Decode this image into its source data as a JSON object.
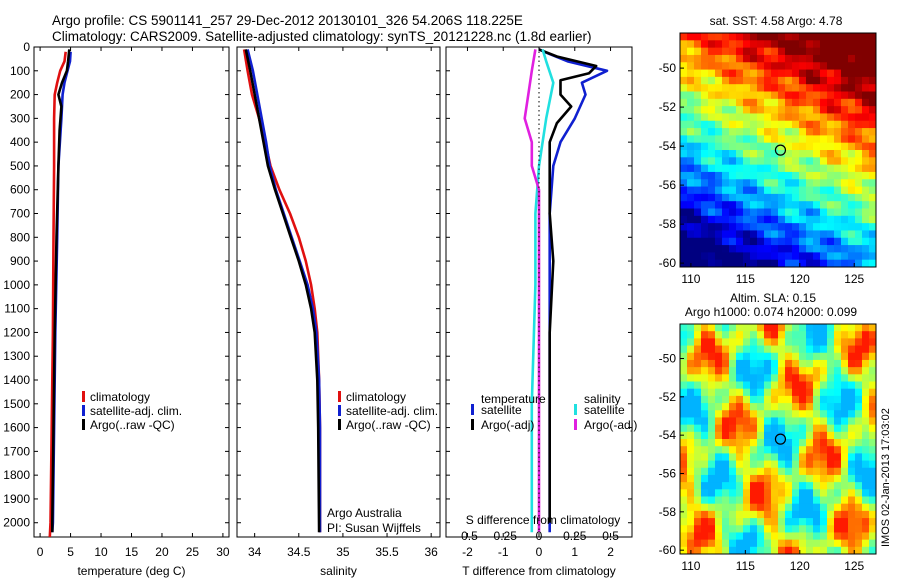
{
  "header": {
    "line1": "Argo profile: CS 5901141_257 29-Dec-2012 20130101_326 54.206S 118.225E",
    "line2": "Climatology: CARS2009. Satellite-adjusted climatology: synTS_20121228.nc (1.8d earlier)"
  },
  "colors": {
    "climatology": "#e01010",
    "satellite": "#1020d0",
    "argo": "#000000",
    "temp_sat": "#1020d0",
    "temp_argo": "#000000",
    "sal_sat": "#20e0e0",
    "sal_argo": "#e020e0"
  },
  "chart_data": [
    {
      "type": "line",
      "id": "temperature",
      "xlabel": "temperature (deg C)",
      "ylabel": "",
      "xlim": [
        -1,
        31
      ],
      "ylim": [
        2060,
        0
      ],
      "xticks": [
        0,
        5,
        10,
        15,
        20,
        25,
        30
      ],
      "yticks": [
        0,
        100,
        200,
        300,
        400,
        500,
        600,
        700,
        800,
        900,
        1000,
        1100,
        1200,
        1300,
        1400,
        1500,
        1600,
        1700,
        1800,
        1900,
        2000
      ],
      "legend": [
        "climatology",
        "satellite-adj. clim.",
        "Argo(..raw -QC)"
      ],
      "series": [
        {
          "name": "climatology",
          "color": "#e01010",
          "points": [
            [
              4.2,
              20
            ],
            [
              4.0,
              60
            ],
            [
              3.3,
              100
            ],
            [
              2.8,
              150
            ],
            [
              2.4,
              200
            ],
            [
              2.3,
              300
            ],
            [
              2.3,
              500
            ],
            [
              2.2,
              800
            ],
            [
              2.1,
              1200
            ],
            [
              1.9,
              1600
            ],
            [
              1.7,
              2000
            ],
            [
              1.6,
              2060
            ]
          ]
        },
        {
          "name": "satellite-adj. clim.",
          "color": "#1020d0",
          "points": [
            [
              5.0,
              20
            ],
            [
              4.9,
              60
            ],
            [
              4.5,
              100
            ],
            [
              4.0,
              150
            ],
            [
              3.7,
              200
            ],
            [
              3.5,
              300
            ],
            [
              3.0,
              500
            ],
            [
              2.8,
              800
            ],
            [
              2.5,
              1200
            ],
            [
              2.3,
              1600
            ],
            [
              2.1,
              2000
            ],
            [
              2.0,
              2040
            ]
          ]
        },
        {
          "name": "Argo(..raw -QC)",
          "color": "#000000",
          "points": [
            [
              4.8,
              10
            ],
            [
              4.6,
              60
            ],
            [
              4.4,
              100
            ],
            [
              3.6,
              150
            ],
            [
              3.0,
              200
            ],
            [
              3.5,
              250
            ],
            [
              3.2,
              350
            ],
            [
              3.0,
              500
            ],
            [
              2.7,
              800
            ],
            [
              2.4,
              1200
            ],
            [
              2.2,
              1600
            ],
            [
              2.0,
              2000
            ],
            [
              2.0,
              2040
            ]
          ]
        }
      ]
    },
    {
      "type": "line",
      "id": "salinity",
      "xlabel": "salinity",
      "ylabel": "",
      "xlim": [
        33.8,
        36.1
      ],
      "ylim": [
        2060,
        0
      ],
      "xticks": [
        34,
        34.5,
        35,
        35.5,
        36
      ],
      "xtick_labels": [
        "34",
        "34.5",
        "35",
        "35.5",
        "36"
      ],
      "legend": [
        "climatology",
        "satellite-adj. clim.",
        "Argo(..raw -QC)"
      ],
      "annotations": [
        "Argo Australia",
        "PI: Susan Wijffels"
      ],
      "series": [
        {
          "name": "climatology",
          "color": "#e01010",
          "points": [
            [
              33.88,
              10
            ],
            [
              33.92,
              100
            ],
            [
              33.97,
              200
            ],
            [
              34.05,
              300
            ],
            [
              34.12,
              400
            ],
            [
              34.18,
              500
            ],
            [
              34.28,
              600
            ],
            [
              34.4,
              700
            ],
            [
              34.5,
              800
            ],
            [
              34.58,
              900
            ],
            [
              34.64,
              1000
            ],
            [
              34.68,
              1100
            ],
            [
              34.71,
              1200
            ],
            [
              34.73,
              1400
            ],
            [
              34.74,
              1600
            ],
            [
              34.74,
              2040
            ]
          ]
        },
        {
          "name": "satellite-adj. clim.",
          "color": "#1020d0",
          "points": [
            [
              33.92,
              10
            ],
            [
              33.98,
              100
            ],
            [
              34.03,
              200
            ],
            [
              34.08,
              300
            ],
            [
              34.13,
              400
            ],
            [
              34.17,
              500
            ],
            [
              34.24,
              600
            ],
            [
              34.33,
              700
            ],
            [
              34.42,
              800
            ],
            [
              34.51,
              900
            ],
            [
              34.6,
              1000
            ],
            [
              34.66,
              1100
            ],
            [
              34.7,
              1200
            ],
            [
              34.73,
              1400
            ],
            [
              34.74,
              1600
            ],
            [
              34.74,
              2040
            ]
          ]
        },
        {
          "name": "Argo(..raw -QC)",
          "color": "#000000",
          "points": [
            [
              33.9,
              10
            ],
            [
              33.95,
              100
            ],
            [
              34.0,
              200
            ],
            [
              34.05,
              300
            ],
            [
              34.1,
              400
            ],
            [
              34.15,
              500
            ],
            [
              34.23,
              600
            ],
            [
              34.32,
              700
            ],
            [
              34.41,
              800
            ],
            [
              34.5,
              900
            ],
            [
              34.58,
              1000
            ],
            [
              34.64,
              1100
            ],
            [
              34.68,
              1200
            ],
            [
              34.71,
              1400
            ],
            [
              34.72,
              1600
            ],
            [
              34.73,
              2040
            ]
          ]
        }
      ]
    },
    {
      "type": "line",
      "id": "differences",
      "xlabel": "T difference from climatology",
      "xlabel_top": "S difference from climatology",
      "xlim": [
        -2.6,
        2.6
      ],
      "ylim": [
        2060,
        0
      ],
      "xticks": [
        -2,
        -1,
        0,
        1,
        2
      ],
      "top_tick_labels": [
        "-0.5",
        "-0.25",
        "0",
        "0.25",
        "0.5"
      ],
      "legend_titles": [
        "temperature",
        "salinity"
      ],
      "legend": [
        "satellite",
        "Argo(-adj)",
        "satellite",
        "Argo(-adj)"
      ],
      "series": [
        {
          "name": "temperature satellite",
          "color": "#1020d0",
          "points": [
            [
              0.0,
              10
            ],
            [
              0.3,
              30
            ],
            [
              0.8,
              60
            ],
            [
              1.9,
              100
            ],
            [
              1.2,
              150
            ],
            [
              1.3,
              200
            ],
            [
              1.0,
              300
            ],
            [
              0.6,
              400
            ],
            [
              0.4,
              500
            ],
            [
              0.3,
              700
            ],
            [
              0.3,
              1000
            ],
            [
              0.3,
              1500
            ],
            [
              0.3,
              2040
            ]
          ]
        },
        {
          "name": "temperature Argo(-adj)",
          "color": "#000000",
          "points": [
            [
              0.0,
              10
            ],
            [
              0.5,
              40
            ],
            [
              1.6,
              80
            ],
            [
              1.4,
              110
            ],
            [
              0.6,
              140
            ],
            [
              0.6,
              200
            ],
            [
              0.9,
              250
            ],
            [
              0.5,
              320
            ],
            [
              0.3,
              400
            ],
            [
              0.3,
              700
            ],
            [
              0.4,
              900
            ],
            [
              0.3,
              1200
            ],
            [
              0.3,
              2000
            ]
          ]
        },
        {
          "name": "salinity satellite",
          "color": "#20e0e0",
          "points": [
            [
              0.1,
              10
            ],
            [
              0.2,
              60
            ],
            [
              0.4,
              150
            ],
            [
              0.2,
              300
            ],
            [
              0.0,
              500
            ],
            [
              -0.1,
              700
            ],
            [
              -0.1,
              1000
            ],
            [
              -0.2,
              1500
            ],
            [
              -0.2,
              2040
            ]
          ]
        },
        {
          "name": "salinity Argo(-adj)",
          "color": "#e020e0",
          "points": [
            [
              -0.1,
              10
            ],
            [
              -0.2,
              100
            ],
            [
              -0.3,
              200
            ],
            [
              -0.4,
              300
            ],
            [
              -0.2,
              400
            ],
            [
              -0.2,
              500
            ],
            [
              0.0,
              600
            ],
            [
              0.0,
              1000
            ],
            [
              0.0,
              2040
            ]
          ]
        }
      ]
    },
    {
      "type": "heatmap",
      "id": "sst-map",
      "title": "sat. SST: 4.58 Argo: 4.78",
      "xlim": [
        109,
        127
      ],
      "ylim": [
        -60.2,
        -48.2
      ],
      "xticks": [
        110,
        115,
        120,
        125
      ],
      "yticks": [
        -50,
        -52,
        -54,
        -56,
        -58,
        -60
      ],
      "marker": {
        "lon": 118.225,
        "lat": -54.206
      }
    },
    {
      "type": "heatmap",
      "id": "sla-map",
      "title": "Altim. SLA: 0.15",
      "subtitle": "Argo h1000: 0.074 h2000: 0.099",
      "xlim": [
        109,
        127
      ],
      "ylim": [
        -60.2,
        -48.2
      ],
      "xticks": [
        110,
        115,
        120,
        125
      ],
      "yticks": [
        -50,
        -52,
        -54,
        -56,
        -58,
        -60
      ],
      "marker": {
        "lon": 118.225,
        "lat": -54.206
      }
    }
  ],
  "footer": {
    "stamp": "IMOS 02-Jan-2013 17:03:02"
  }
}
